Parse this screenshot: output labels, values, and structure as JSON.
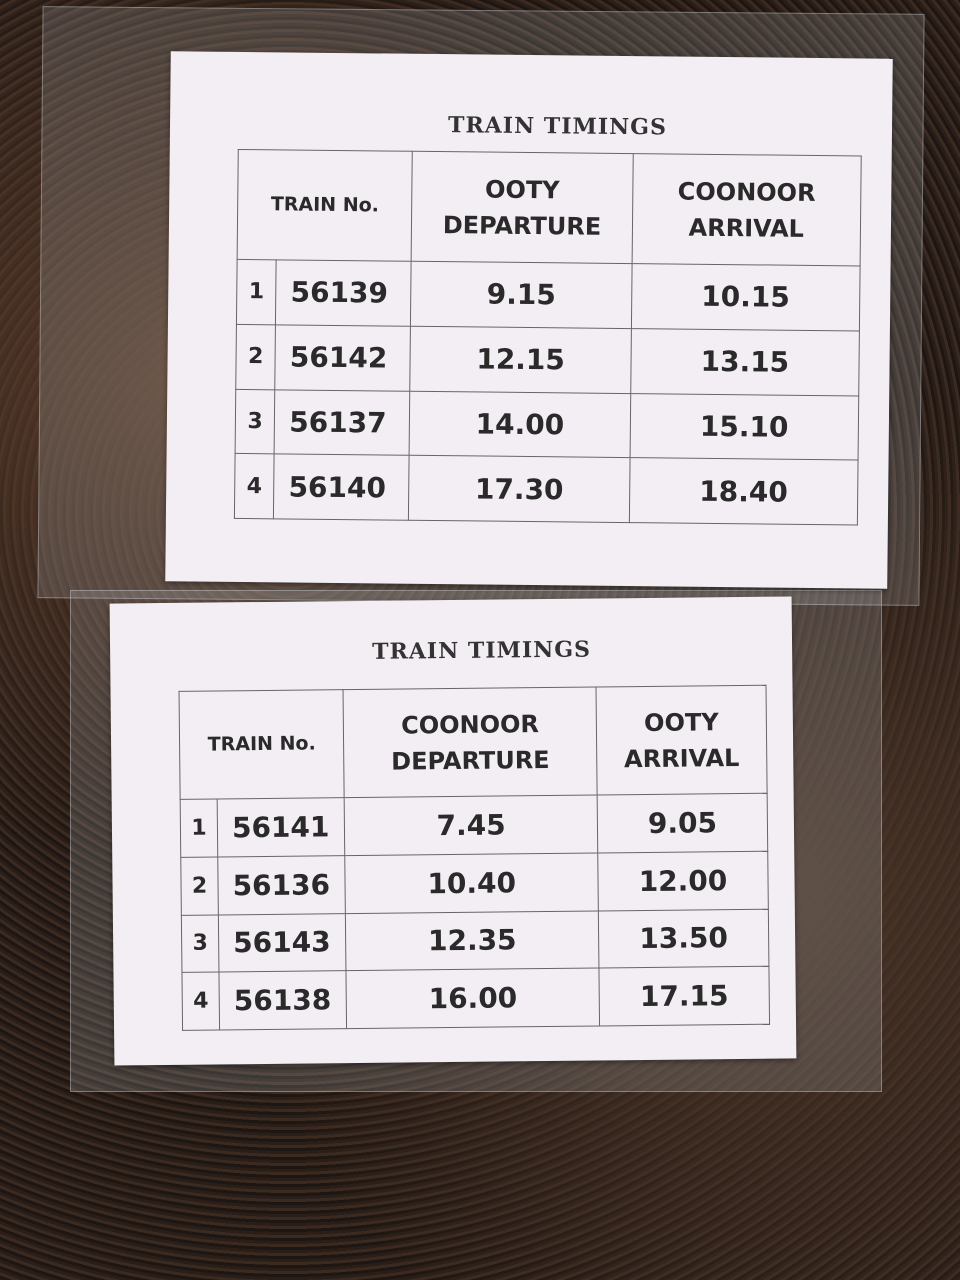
{
  "sheets": [
    {
      "title": "TRAIN TIMINGS",
      "headers": [
        "TRAIN No.",
        "OOTY DEPARTURE",
        "COONOOR ARRIVAL"
      ],
      "rows": [
        {
          "idx": "1",
          "train": "56139",
          "dep": "9.15",
          "arr": "10.15"
        },
        {
          "idx": "2",
          "train": "56142",
          "dep": "12.15",
          "arr": "13.15"
        },
        {
          "idx": "3",
          "train": "56137",
          "dep": "14.00",
          "arr": "15.10"
        },
        {
          "idx": "4",
          "train": "56140",
          "dep": "17.30",
          "arr": "18.40"
        }
      ]
    },
    {
      "title": "TRAIN TIMINGS",
      "headers": [
        "TRAIN No.",
        "COONOOR DEPARTURE",
        "OOTY ARRIVAL"
      ],
      "rows": [
        {
          "idx": "1",
          "train": "56141",
          "dep": "7.45",
          "arr": "9.05"
        },
        {
          "idx": "2",
          "train": "56136",
          "dep": "10.40",
          "arr": "12.00"
        },
        {
          "idx": "3",
          "train": "56143",
          "dep": "12.35",
          "arr": "13.50"
        },
        {
          "idx": "4",
          "train": "56138",
          "dep": "16.00",
          "arr": "17.15"
        }
      ]
    }
  ]
}
